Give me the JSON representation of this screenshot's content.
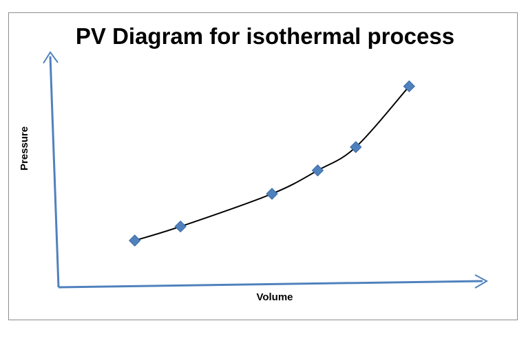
{
  "chart_data": {
    "type": "scatter",
    "title": "PV Diagram for isothermal process",
    "xlabel": "Volume",
    "ylabel": "Pressure",
    "grid": false,
    "legend": "none",
    "trendline": "smooth",
    "series": [
      {
        "values": [
          {
            "x": 1.0,
            "y": 1.0
          },
          {
            "x": 1.6,
            "y": 1.3
          },
          {
            "x": 2.8,
            "y": 2.0
          },
          {
            "x": 3.4,
            "y": 2.5
          },
          {
            "x": 3.9,
            "y": 3.0
          },
          {
            "x": 4.6,
            "y": 4.3
          }
        ]
      }
    ],
    "xlim": [
      0,
      5.6
    ],
    "ylim": [
      0,
      5.0
    ],
    "colors": {
      "marker": "#4f81bd",
      "axis": "#4f81bd",
      "curve": "#000000"
    }
  }
}
